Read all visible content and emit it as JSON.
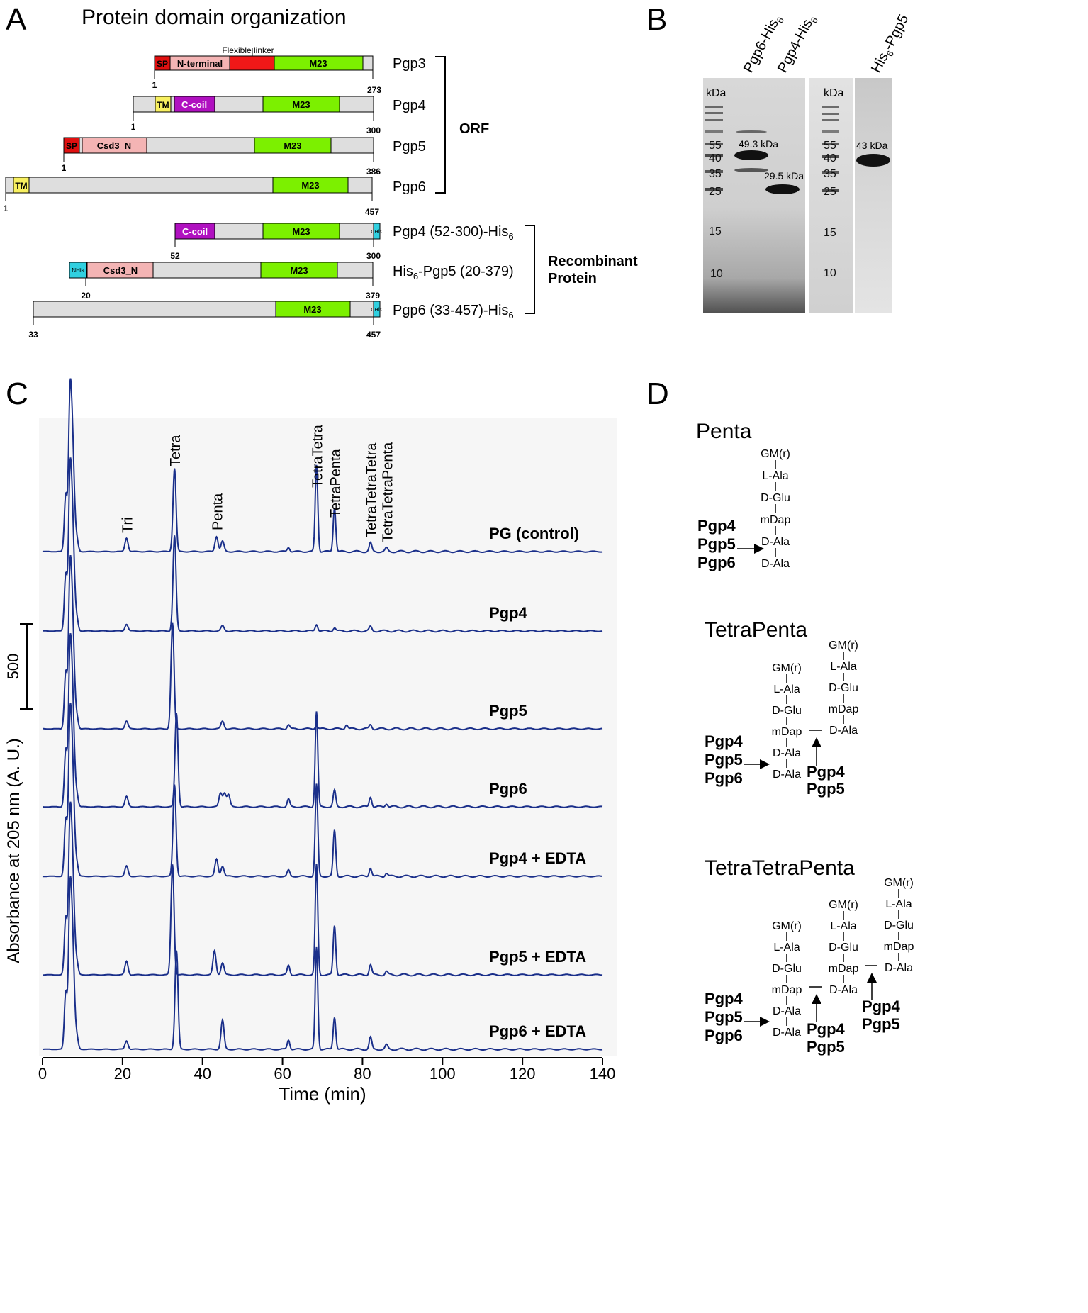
{
  "panels": {
    "A": {
      "letter": "A",
      "title": "Protein domain organization",
      "flexible_linker_label": "Flexible linker",
      "proteins": [
        {
          "name": "Pgp3",
          "start": "1",
          "end": "273",
          "domains": [
            {
              "label": "SP"
            },
            {
              "label": "N-terminal"
            },
            {
              "label": ""
            },
            {
              "label": "M23"
            }
          ]
        },
        {
          "name": "Pgp4",
          "start": "1",
          "end": "300",
          "domains": [
            {
              "label": "TM"
            },
            {
              "label": "C-coil"
            },
            {
              "label": "M23"
            }
          ]
        },
        {
          "name": "Pgp5",
          "start": "1",
          "end": "386",
          "domains": [
            {
              "label": "SP"
            },
            {
              "label": "Csd3_N"
            },
            {
              "label": "M23"
            }
          ]
        },
        {
          "name": "Pgp6",
          "start": "1",
          "end": "457",
          "domains": [
            {
              "label": "TM"
            },
            {
              "label": "M23"
            }
          ]
        },
        {
          "name_main": "Pgp4 (52-300)-His",
          "name_sub": "6",
          "name_after": "",
          "start": "52",
          "end": "300",
          "domains": [
            {
              "label": "C-coil"
            },
            {
              "label": "M23"
            },
            {
              "label": "CHis"
            }
          ]
        },
        {
          "name_main": "His",
          "name_sub": "6",
          "name_after": "-Pgp5 (20-379)",
          "start": "20",
          "end": "379",
          "domains": [
            {
              "label": "NHis"
            },
            {
              "label": "Csd3_N"
            },
            {
              "label": "M23"
            }
          ]
        },
        {
          "name_main": "Pgp6 (33-457)-His",
          "name_sub": "6",
          "name_after": "",
          "start": "33",
          "end": "457",
          "domains": [
            {
              "label": "M23"
            },
            {
              "label": "CHis"
            }
          ]
        }
      ],
      "group_orf": "ORF",
      "group_recombinant_line1": "Recombinant",
      "group_recombinant_line2": "Protein"
    },
    "B": {
      "letter": "B",
      "lanes": [
        {
          "main": "Pgp6-His",
          "sub": "6",
          "after": ""
        },
        {
          "main": "Pgp4-His",
          "sub": "6",
          "after": ""
        },
        {
          "main": "His",
          "sub": "6",
          "after": "-Pgp5"
        }
      ],
      "unit": "kDa",
      "markers": [
        "55",
        "40",
        "35",
        "25",
        "15",
        "10"
      ],
      "band_labels": [
        "49.3 kDa",
        "29.5 kDa",
        "43 kDa"
      ]
    },
    "C": {
      "letter": "C",
      "ylabel": "Absorbance at 205 nm (A. U.)",
      "xlabel": "Time (min)",
      "scale_bar_label": "500",
      "peak_labels": [
        "Tri",
        "Tetra",
        "Penta",
        "TetraTetra",
        "TetraPenta",
        "TetraTetraTetra",
        "TetraTetraPenta"
      ]
    },
    "D": {
      "letter": "D",
      "penta": {
        "title": "Penta",
        "stem": [
          "GM(r)",
          "L-Ala",
          "D-Glu",
          "mDap",
          "D-Ala",
          "D-Ala"
        ],
        "enzymes": [
          "Pgp4",
          "Pgp5",
          "Pgp6"
        ]
      },
      "tetrapenta": {
        "title": "TetraPenta",
        "stem1": [
          "GM(r)",
          "L-Ala",
          "D-Glu",
          "mDap",
          "D-Ala",
          "D-Ala"
        ],
        "stem2": [
          "GM(r)",
          "L-Ala",
          "D-Glu",
          "mDap",
          "D-Ala"
        ],
        "enzymes_left": [
          "Pgp4",
          "Pgp5",
          "Pgp6"
        ],
        "enzymes_bridge": [
          "Pgp4",
          "Pgp5"
        ]
      },
      "tetratetrapenta": {
        "title": "TetraTetraPenta",
        "stem1": [
          "GM(r)",
          "L-Ala",
          "D-Glu",
          "mDap",
          "D-Ala",
          "D-Ala"
        ],
        "stem2": [
          "GM(r)",
          "L-Ala",
          "D-Glu",
          "mDap",
          "D-Ala"
        ],
        "stem3": [
          "GM(r)",
          "L-Ala",
          "D-Glu",
          "mDap",
          "D-Ala"
        ],
        "enzymes_left": [
          "Pgp4",
          "Pgp5",
          "Pgp6"
        ],
        "enzymes_bridge1": [
          "Pgp4",
          "Pgp5"
        ],
        "enzymes_bridge2": [
          "Pgp4",
          "Pgp5"
        ]
      }
    }
  },
  "chart_data": {
    "type": "line",
    "title": "",
    "xlabel": "Time (min)",
    "ylabel": "Absorbance at 205 nm (A. U.)",
    "xlim": [
      0,
      140
    ],
    "xticks": [
      0,
      20,
      40,
      60,
      80,
      100,
      120,
      140
    ],
    "scale_bar_value": 500,
    "peak_labels": [
      {
        "label": "Tri",
        "x": 21
      },
      {
        "label": "Tetra",
        "x": 33
      },
      {
        "label": "Penta",
        "x": 43.5
      },
      {
        "label": "TetraTetra",
        "x": 68.5
      },
      {
        "label": "TetraPenta",
        "x": 73
      },
      {
        "label": "TetraTetraTetra",
        "x": 82
      },
      {
        "label": "TetraTetraPenta",
        "x": 86
      }
    ],
    "series": [
      {
        "name": "PG (control)",
        "peaks": [
          [
            21,
            80
          ],
          [
            33,
            490
          ],
          [
            43.5,
            90
          ],
          [
            45,
            60
          ],
          [
            61.5,
            25
          ],
          [
            68.5,
            510
          ],
          [
            73,
            260
          ],
          [
            82,
            50
          ],
          [
            86,
            20
          ]
        ]
      },
      {
        "name": "Pgp4",
        "peaks": [
          [
            21,
            40
          ],
          [
            33,
            560
          ],
          [
            45,
            30
          ],
          [
            68.5,
            40
          ],
          [
            73,
            20
          ],
          [
            82,
            25
          ]
        ]
      },
      {
        "name": "Pgp5",
        "peaks": [
          [
            21,
            45
          ],
          [
            32.5,
            620
          ],
          [
            45,
            45
          ],
          [
            61.5,
            25
          ],
          [
            68.5,
            20
          ],
          [
            76,
            25
          ],
          [
            82,
            25
          ]
        ]
      },
      {
        "name": "Pgp6",
        "peaks": [
          [
            21,
            60
          ],
          [
            33.5,
            550
          ],
          [
            44.5,
            80
          ],
          [
            45.5,
            80
          ],
          [
            46.5,
            70
          ],
          [
            61.5,
            45
          ],
          [
            68.5,
            560
          ],
          [
            73,
            95
          ],
          [
            82,
            60
          ],
          [
            86,
            20
          ]
        ]
      },
      {
        "name": "Pgp4 + EDTA",
        "peaks": [
          [
            21,
            60
          ],
          [
            33,
            540
          ],
          [
            43.5,
            100
          ],
          [
            45,
            60
          ],
          [
            61.5,
            35
          ],
          [
            68.5,
            540
          ],
          [
            73,
            270
          ],
          [
            82,
            50
          ],
          [
            86,
            20
          ]
        ]
      },
      {
        "name": "Pgp5 + EDTA",
        "peaks": [
          [
            21,
            80
          ],
          [
            32.5,
            650
          ],
          [
            43,
            140
          ],
          [
            45,
            70
          ],
          [
            61.5,
            55
          ],
          [
            68.5,
            650
          ],
          [
            73,
            290
          ],
          [
            82,
            60
          ],
          [
            86,
            20
          ]
        ]
      },
      {
        "name": "Pgp6 + EDTA",
        "peaks": [
          [
            21,
            50
          ],
          [
            33.5,
            580
          ],
          [
            45,
            170
          ],
          [
            61.5,
            55
          ],
          [
            68.5,
            600
          ],
          [
            73,
            190
          ],
          [
            82,
            70
          ],
          [
            86,
            25
          ]
        ]
      }
    ],
    "legend": "none"
  }
}
